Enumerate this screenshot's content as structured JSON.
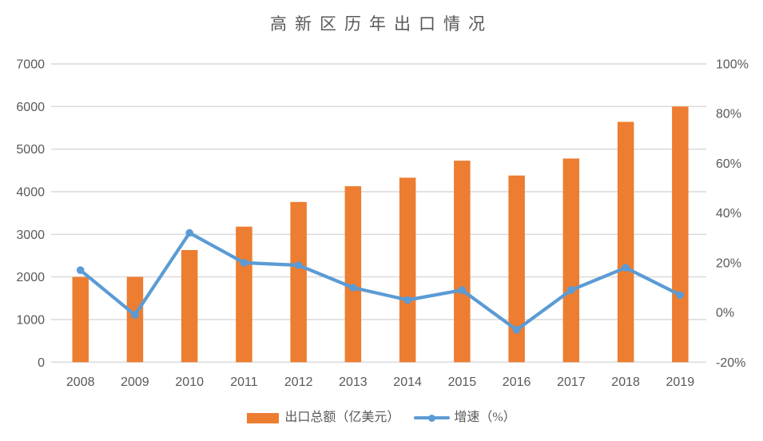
{
  "title": "高新区历年出口情况",
  "legend": {
    "bar_label": "出口总额（亿美元）",
    "line_label": "增速（%）"
  },
  "colors": {
    "bar": "#ED7D31",
    "line": "#5B9BD5",
    "grid": "#D9D9D9",
    "text": "#595959",
    "background": "#FFFFFF"
  },
  "chart_data": {
    "type": "bar",
    "subtype": "combo-bar-line-dual-axis",
    "title": "高新区历年出口情况",
    "categories": [
      "2008",
      "2009",
      "2010",
      "2011",
      "2012",
      "2013",
      "2014",
      "2015",
      "2016",
      "2017",
      "2018",
      "2019"
    ],
    "series": [
      {
        "name": "出口总额（亿美元）",
        "type": "bar",
        "axis": "left",
        "values": [
          2000,
          2000,
          2630,
          3180,
          3760,
          4130,
          4330,
          4730,
          4380,
          4780,
          5640,
          6000
        ]
      },
      {
        "name": "增速（%）",
        "type": "line",
        "axis": "right",
        "values": [
          17,
          -1,
          32,
          20,
          19,
          10,
          5,
          9,
          -7,
          9,
          18,
          7
        ]
      }
    ],
    "left_axis": {
      "min": 0,
      "max": 7000,
      "ticks": [
        0,
        1000,
        2000,
        3000,
        4000,
        5000,
        6000,
        7000
      ],
      "suffix": ""
    },
    "right_axis": {
      "min": -20,
      "max": 100,
      "ticks": [
        -20,
        0,
        20,
        40,
        60,
        80,
        100
      ],
      "suffix": "%"
    },
    "grid": "horizontal-from-left-axis",
    "legend_position": "bottom"
  }
}
